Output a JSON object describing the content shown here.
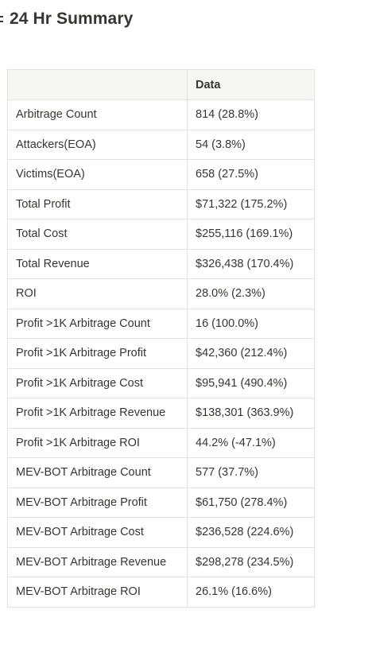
{
  "header": {
    "title": "24 Hr Summary",
    "icon": "list-icon"
  },
  "table": {
    "columns": [
      "",
      "Data"
    ],
    "rows": [
      {
        "metric": "Arbitrage Count",
        "value": "814 (28.8%)"
      },
      {
        "metric": "Attackers(EOA)",
        "value": "54 (3.8%)"
      },
      {
        "metric": "Victims(EOA)",
        "value": "658 (27.5%)"
      },
      {
        "metric": "Total Profit",
        "value": "$71,322 (175.2%)"
      },
      {
        "metric": "Total Cost",
        "value": "$255,116 (169.1%)"
      },
      {
        "metric": "Total Revenue",
        "value": "$326,438 (170.4%)"
      },
      {
        "metric": "ROI",
        "value": "28.0% (2.3%)"
      },
      {
        "metric": "Profit >1K Arbitrage Count",
        "value": "16 (100.0%)"
      },
      {
        "metric": "Profit >1K Arbitrage Profit",
        "value": "$42,360 (212.4%)"
      },
      {
        "metric": "Profit >1K Arbitrage Cost",
        "value": "$95,941 (490.4%)"
      },
      {
        "metric": "Profit >1K Arbitrage Revenue",
        "value": "$138,301 (363.9%)"
      },
      {
        "metric": "Profit >1K Arbitrage ROI",
        "value": "44.2% (-47.1%)"
      },
      {
        "metric": "MEV-BOT Arbitrage Count",
        "value": "577 (37.7%)"
      },
      {
        "metric": "MEV-BOT Arbitrage Profit",
        "value": "$61,750 (278.4%)"
      },
      {
        "metric": "MEV-BOT Arbitrage Cost",
        "value": "$236,528 (224.6%)"
      },
      {
        "metric": "MEV-BOT Arbitrage Revenue",
        "value": "$298,278 (234.5%)"
      },
      {
        "metric": "MEV-BOT Arbitrage ROI",
        "value": "26.1% (16.6%)"
      }
    ]
  }
}
